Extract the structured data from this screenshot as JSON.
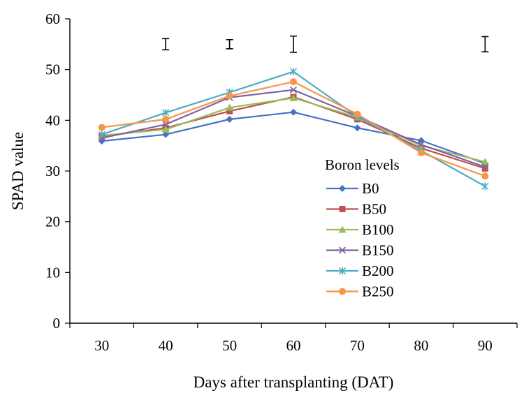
{
  "chart_data": {
    "type": "line",
    "xlabel": "Days after transplanting (DAT)",
    "ylabel": "SPAD value",
    "x": [
      30,
      40,
      50,
      60,
      70,
      80,
      90
    ],
    "ylim": [
      0,
      60
    ],
    "yticks": [
      0,
      10,
      20,
      30,
      40,
      50,
      60
    ],
    "grid": false,
    "legend": {
      "title": "Boron levels",
      "placement": "center-right"
    },
    "series": [
      {
        "name": "B0",
        "color": "#4472C4",
        "marker": "diamond",
        "values": [
          35.9,
          37.2,
          40.2,
          41.6,
          38.5,
          36.0,
          31.5
        ]
      },
      {
        "name": "B50",
        "color": "#C0504D",
        "marker": "square",
        "values": [
          36.8,
          38.5,
          41.8,
          44.6,
          40.2,
          34.5,
          30.5
        ]
      },
      {
        "name": "B100",
        "color": "#9BBB59",
        "marker": "triangle",
        "values": [
          37.0,
          38.2,
          42.5,
          44.4,
          40.6,
          35.0,
          31.8
        ]
      },
      {
        "name": "B150",
        "color": "#8064A2",
        "marker": "x",
        "values": [
          36.5,
          39.2,
          44.5,
          46.0,
          40.8,
          35.2,
          30.8
        ]
      },
      {
        "name": "B200",
        "color": "#4BACC6",
        "marker": "star",
        "values": [
          37.2,
          41.5,
          45.5,
          49.6,
          40.7,
          34.0,
          27.0
        ]
      },
      {
        "name": "B250",
        "color": "#F79646",
        "marker": "circle",
        "values": [
          38.6,
          40.2,
          44.8,
          47.6,
          41.2,
          33.6,
          29.0
        ]
      }
    ],
    "error_bars": [
      {
        "x": 40,
        "center": 55.0,
        "half": 1.1
      },
      {
        "x": 50,
        "center": 55.0,
        "half": 0.9
      },
      {
        "x": 60,
        "center": 55.0,
        "half": 1.6
      },
      {
        "x": 90,
        "center": 55.0,
        "half": 1.5
      }
    ]
  }
}
